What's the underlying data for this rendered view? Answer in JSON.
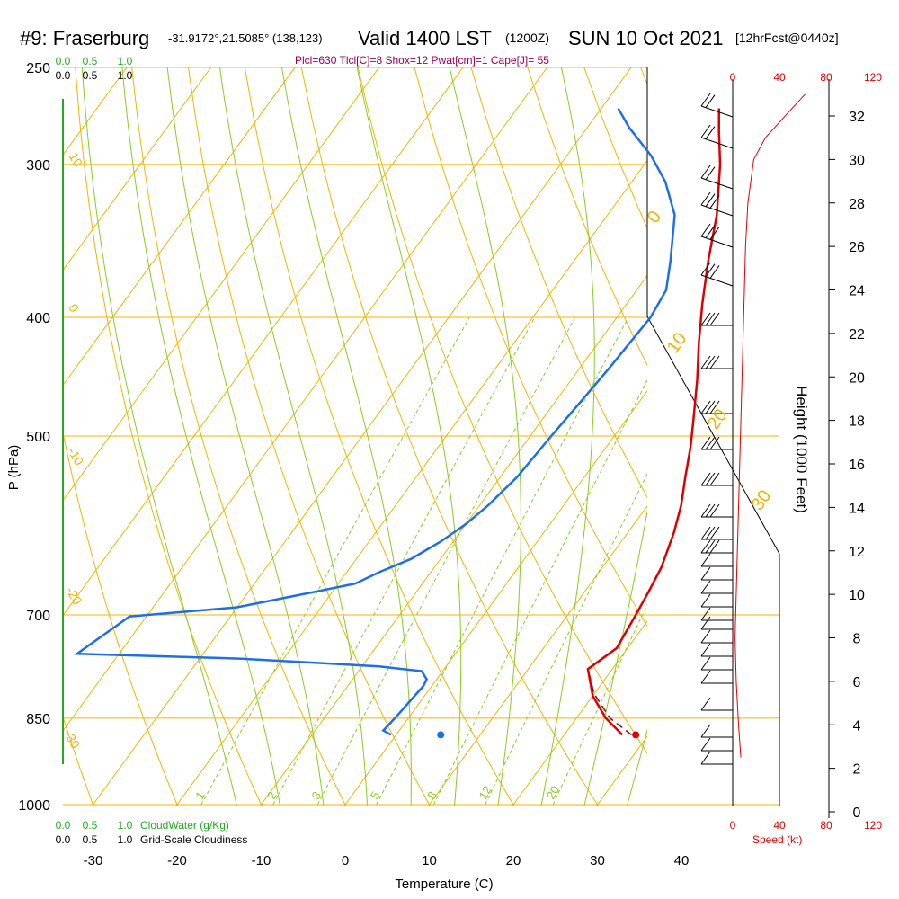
{
  "header": {
    "station": "#9: Fraserburg",
    "coords": "-31.9172°,21.5085° (138,123)",
    "valid": "Valid 1400 LST",
    "utc": "(1200Z)",
    "date": "SUN 10 Oct 2021",
    "forecast": "[12hrFcst@0440z]"
  },
  "indices_text": "Plcl=630 Tlcl[C]=8 Shox=12 Pwat[cm]=1 Cape[J]= 55",
  "chart_data": {
    "type": "line",
    "xlabel": "Temperature (C)",
    "ylabel": "P (hPa)",
    "right_label": "Height (1000 Feet)",
    "x_ticks": [
      "-30",
      "-20",
      "-10",
      "0",
      "10",
      "20",
      "30",
      "40"
    ],
    "p_ticks": [
      "250",
      "300",
      "400",
      "500",
      "700",
      "850",
      "1000"
    ],
    "height_ticks": [
      "0",
      "2",
      "4",
      "6",
      "8",
      "10",
      "12",
      "14",
      "16",
      "18",
      "20",
      "22",
      "24",
      "26",
      "28",
      "30",
      "32"
    ],
    "skew_temp_labels": [
      "10",
      "0",
      "-10",
      "-20",
      "-30"
    ],
    "skew_temp_labels_right": [
      "0",
      "10",
      "20",
      "30"
    ],
    "mixing_ratio_labels": [
      "1",
      "2",
      "3",
      "5",
      "8",
      "12",
      "20"
    ],
    "cloud_water_scale": [
      "0.0",
      "0.5",
      "1.0"
    ],
    "cloud_water_label": "CloudWater (g/Kg)",
    "cloudiness_scale": [
      "0.0",
      "0.5",
      "1.0"
    ],
    "cloudiness_label": "Grid-Scale Cloudiness",
    "speed_scale": [
      "0",
      "40",
      "80",
      "120"
    ],
    "speed_label": "Speed (kt)",
    "temperature": {
      "color": "#dd0000",
      "points": [
        [
          26.9,
          877
        ],
        [
          23.5,
          850
        ],
        [
          20.0,
          815
        ],
        [
          17.1,
          775
        ],
        [
          17.9,
          760
        ],
        [
          18.7,
          745
        ],
        [
          18.1,
          700
        ],
        [
          17.6,
          670
        ],
        [
          17.0,
          640
        ],
        [
          15.5,
          600
        ],
        [
          14.0,
          570
        ],
        [
          12.0,
          540
        ],
        [
          10.0,
          510
        ],
        [
          8.0,
          485
        ],
        [
          5.0,
          450
        ],
        [
          2.0,
          420
        ],
        [
          -1.0,
          390
        ],
        [
          -4.0,
          360
        ],
        [
          -7.0,
          330
        ],
        [
          -11.0,
          300
        ],
        [
          -14.0,
          282
        ],
        [
          -16.0,
          270
        ]
      ]
    },
    "dewpoint": {
      "color": "#1e6ee8",
      "points": [
        [
          -0.6,
          877
        ],
        [
          -1.9,
          870
        ],
        [
          -1.6,
          850
        ],
        [
          -1.0,
          800
        ],
        [
          -1.2,
          790
        ],
        [
          -2.5,
          778
        ],
        [
          -8.0,
          771
        ],
        [
          -25.0,
          760
        ],
        [
          -45.0,
          753
        ],
        [
          -42.0,
          702
        ],
        [
          -30.0,
          690
        ],
        [
          -22.0,
          670
        ],
        [
          -18.0,
          660
        ],
        [
          -16.0,
          645
        ],
        [
          -13.5,
          630
        ],
        [
          -11.5,
          610
        ],
        [
          -10.0,
          590
        ],
        [
          -9.0,
          570
        ],
        [
          -8.0,
          540
        ],
        [
          -7.5,
          500
        ],
        [
          -7.0,
          470
        ],
        [
          -6.5,
          440
        ],
        [
          -6.0,
          400
        ],
        [
          -6.5,
          380
        ],
        [
          -8.5,
          360
        ],
        [
          -12.0,
          330
        ],
        [
          -16.0,
          310
        ],
        [
          -20.0,
          295
        ],
        [
          -25.0,
          280
        ],
        [
          -28.0,
          270
        ]
      ]
    },
    "parcel": {
      "color": "#7a1010",
      "points": [
        [
          28.0,
          877
        ],
        [
          24.0,
          850
        ],
        [
          20.0,
          812
        ],
        [
          17.5,
          780
        ]
      ]
    },
    "surface_temp_c": 28.5,
    "surface_dewpoint_c": 5.3,
    "wind_speed_profile_kt": [
      [
        2.5,
        7
      ],
      [
        4.0,
        5
      ],
      [
        6.0,
        3
      ],
      [
        8.0,
        2
      ],
      [
        10.0,
        3
      ],
      [
        12.0,
        4
      ],
      [
        14.0,
        5
      ],
      [
        16.0,
        6
      ],
      [
        18.0,
        7
      ],
      [
        20.0,
        8
      ],
      [
        22.0,
        9
      ],
      [
        24.0,
        10
      ],
      [
        26.0,
        11
      ],
      [
        28.0,
        13
      ],
      [
        30.0,
        18
      ],
      [
        31.0,
        28
      ],
      [
        32.3,
        50
      ],
      [
        33.0,
        62
      ]
    ]
  }
}
